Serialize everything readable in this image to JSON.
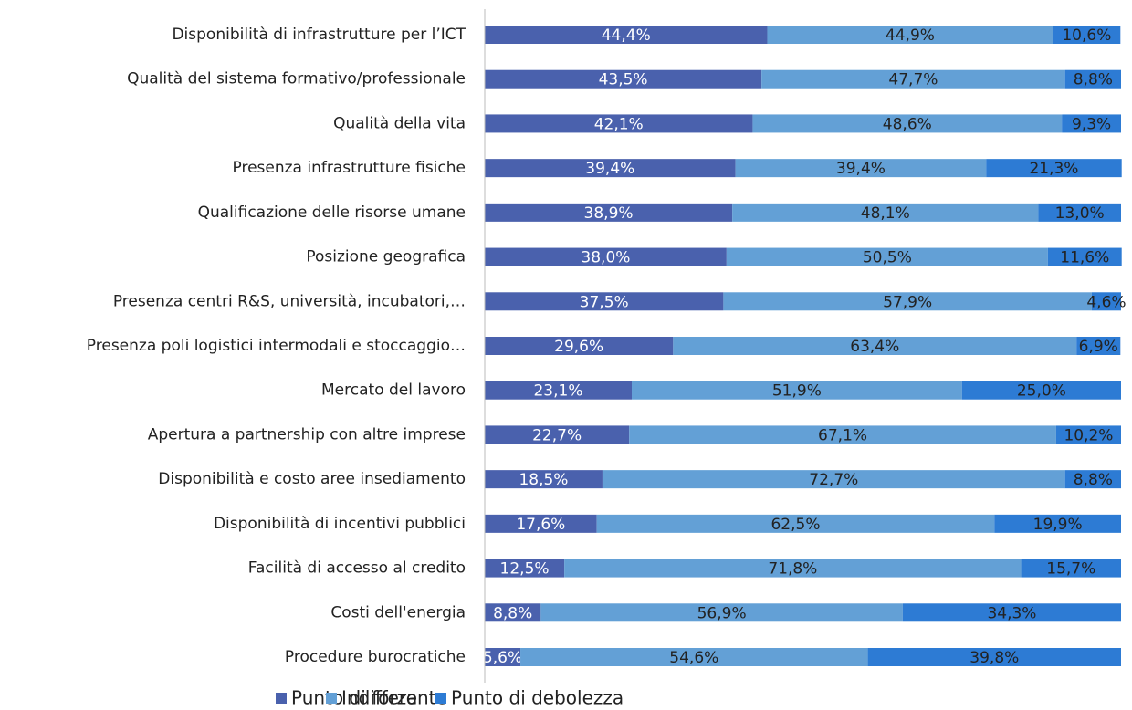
{
  "chart_data": {
    "type": "bar",
    "orientation": "horizontal",
    "stacked": true,
    "categories": [
      "Disponibilità di infrastrutture per l’ICT",
      "Qualità del sistema formativo/professionale",
      "Qualità della vita",
      "Presenza infrastrutture fisiche",
      "Qualificazione delle risorse umane",
      "Posizione geografica",
      "Presenza centri R&S, università, incubatori,…",
      "Presenza poli logistici intermodali e stoccaggio…",
      "Mercato del lavoro",
      "Apertura a partnership con altre imprese",
      "Disponibilità e costo aree insediamento",
      "Disponibilità di incentivi pubblici",
      "Facilità di accesso al credito",
      "Costi dell'energia",
      "Procedure burocratiche"
    ],
    "xlim": [
      0,
      100
    ],
    "series": [
      {
        "name": "Punto di forza",
        "color": "#4a61ad",
        "values": [
          44.4,
          43.5,
          42.1,
          39.4,
          38.9,
          38.0,
          37.5,
          29.6,
          23.1,
          22.7,
          18.5,
          17.6,
          12.5,
          8.8,
          5.6
        ],
        "value_labels": [
          "44,4%",
          "43,5%",
          "42,1%",
          "39,4%",
          "38,9%",
          "38,0%",
          "37,5%",
          "29,6%",
          "23,1%",
          "22,7%",
          "18,5%",
          "17,6%",
          "12,5%",
          "8,8%",
          "5,6%"
        ]
      },
      {
        "name": "Indifferente",
        "color": "#63a0d6",
        "values": [
          44.9,
          47.7,
          48.6,
          39.4,
          48.1,
          50.5,
          57.9,
          63.4,
          51.9,
          67.1,
          72.7,
          62.5,
          71.8,
          56.9,
          54.6
        ],
        "value_labels": [
          "44,9%",
          "47,7%",
          "48,6%",
          "39,4%",
          "48,1%",
          "50,5%",
          "57,9%",
          "63,4%",
          "51,9%",
          "67,1%",
          "72,7%",
          "62,5%",
          "71,8%",
          "56,9%",
          "54,6%"
        ]
      },
      {
        "name": "Punto di debolezza",
        "color": "#2d7bd4",
        "values": [
          10.6,
          8.8,
          9.3,
          21.3,
          13.0,
          11.6,
          4.6,
          6.9,
          25.0,
          10.2,
          8.8,
          19.9,
          15.7,
          34.3,
          39.8
        ],
        "value_labels": [
          "10,6%",
          "8,8%",
          "9,3%",
          "21,3%",
          "13,0%",
          "11,6%",
          "4,6%",
          "6,9%",
          "25,0%",
          "10,2%",
          "8,8%",
          "19,9%",
          "15,7%",
          "34,3%",
          "39,8%"
        ]
      }
    ],
    "legend": "bottom"
  }
}
